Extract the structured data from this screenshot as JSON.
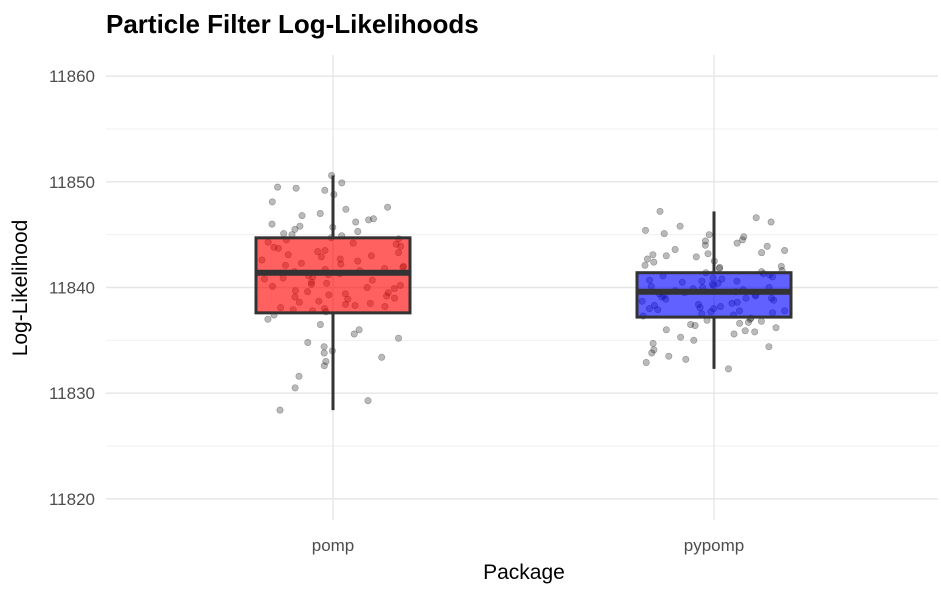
{
  "chart_data": {
    "type": "box",
    "title": "Particle Filter Log-Likelihoods",
    "xlabel": "Package",
    "ylabel": "Log-Likelihood",
    "categories": [
      "pomp",
      "pypomp"
    ],
    "y_ticks": [
      11820,
      11830,
      11840,
      11850,
      11860
    ],
    "y_tick_labels": [
      "11820",
      "11830",
      "11840",
      "11850",
      "11860"
    ],
    "ylim": [
      11818,
      11862
    ],
    "grid": true,
    "legend": "none",
    "series": [
      {
        "category": "pomp",
        "color": "#ff0000",
        "whisker_low": 11828.4,
        "q1": 11837.6,
        "median": 11841.4,
        "q3": 11844.7,
        "whisker_high": 11850.6,
        "points": [
          11850.6,
          11849.9,
          11849.5,
          11849.4,
          11849.2,
          11848.8,
          11848.1,
          11847.6,
          11847.4,
          11847.0,
          11846.8,
          11846.5,
          11846.2,
          11846.0,
          11845.7,
          11845.5,
          11845.3,
          11845.1,
          11844.9,
          11844.7,
          11844.5,
          11844.3,
          11844.1,
          11843.9,
          11843.7,
          11843.5,
          11843.3,
          11843.1,
          11842.9,
          11842.7,
          11842.5,
          11842.3,
          11842.1,
          11841.9,
          11841.7,
          11841.5,
          11841.3,
          11841.1,
          11840.9,
          11840.7,
          11840.5,
          11840.3,
          11840.1,
          11839.9,
          11839.7,
          11839.5,
          11839.3,
          11839.1,
          11838.9,
          11838.7,
          11838.5,
          11838.3,
          11838.1,
          11837.9,
          11837.7,
          11837.4,
          11837.0,
          11836.5,
          11836.0,
          11835.6,
          11835.2,
          11834.8,
          11834.4,
          11834.0,
          11833.8,
          11833.4,
          11833.0,
          11832.6,
          11831.6,
          11830.5,
          11829.3,
          11828.4,
          11845.8,
          11843.0,
          11841.8,
          11840.2,
          11839.0,
          11838.2,
          11846.4,
          11844.2,
          11842.2,
          11840.8,
          11839.6,
          11837.8,
          11845.0,
          11843.4,
          11841.6,
          11840.0,
          11838.6,
          11844.6,
          11842.6,
          11841.0,
          11839.4,
          11838.0,
          11843.8,
          11842.0,
          11840.4,
          11839.2,
          11838.4,
          11841.2
        ]
      },
      {
        "category": "pypomp",
        "color": "#0000ff",
        "whisker_low": 11832.3,
        "q1": 11837.2,
        "median": 11839.6,
        "q3": 11841.4,
        "whisker_high": 11847.2,
        "points": [
          11847.2,
          11846.6,
          11846.2,
          11845.8,
          11845.4,
          11845.1,
          11844.8,
          11844.5,
          11844.2,
          11843.9,
          11843.6,
          11843.3,
          11843.0,
          11842.7,
          11842.4,
          11842.1,
          11841.8,
          11841.5,
          11841.3,
          11841.1,
          11840.9,
          11840.7,
          11840.5,
          11840.3,
          11840.1,
          11839.9,
          11839.7,
          11839.5,
          11839.3,
          11839.1,
          11838.9,
          11838.7,
          11838.5,
          11838.3,
          11838.1,
          11837.9,
          11837.7,
          11837.5,
          11837.3,
          11837.1,
          11836.9,
          11836.7,
          11836.5,
          11836.2,
          11835.9,
          11835.6,
          11835.3,
          11835.0,
          11834.7,
          11834.4,
          11834.1,
          11833.8,
          11833.5,
          11833.2,
          11832.9,
          11832.3,
          11844.0,
          11842.9,
          11841.9,
          11841.0,
          11840.4,
          11840.0,
          11839.4,
          11839.0,
          11838.6,
          11838.0,
          11837.6,
          11836.6,
          11843.2,
          11842.0,
          11841.2,
          11840.6,
          11840.2,
          11839.8,
          11839.2,
          11838.8,
          11838.2,
          11837.8,
          11837.4,
          11836.8,
          11844.4,
          11843.1,
          11841.6,
          11840.8,
          11839.6,
          11838.4,
          11837.0,
          11835.8,
          11842.5,
          11841.4,
          11840.0,
          11839.0,
          11838.0,
          11836.4,
          11845.0,
          11843.5,
          11840.6,
          11839.2,
          11837.8,
          11836.0
        ]
      }
    ]
  }
}
